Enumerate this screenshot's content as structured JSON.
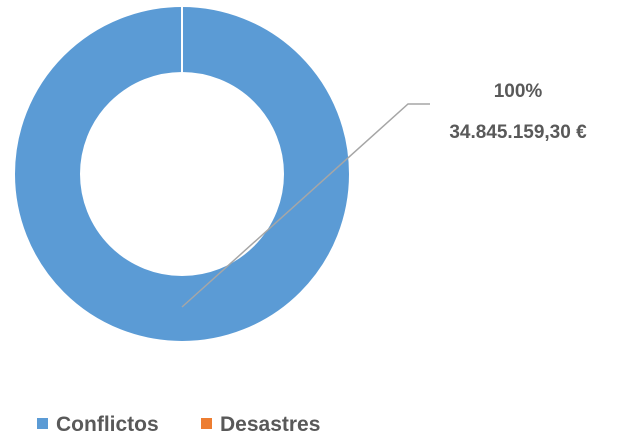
{
  "chart_data": {
    "type": "pie",
    "variant": "donut",
    "categories": [
      "Conflictos",
      "Desastres"
    ],
    "values": [
      34845159.3,
      0
    ],
    "colors": [
      "#5b9bd5",
      "#ed7d31"
    ],
    "data_labels": [
      {
        "percent": "100%",
        "value": "34.845.159,30 €"
      }
    ],
    "legend": {
      "position": "bottom",
      "entries": [
        "Conflictos",
        "Desastres"
      ]
    }
  }
}
